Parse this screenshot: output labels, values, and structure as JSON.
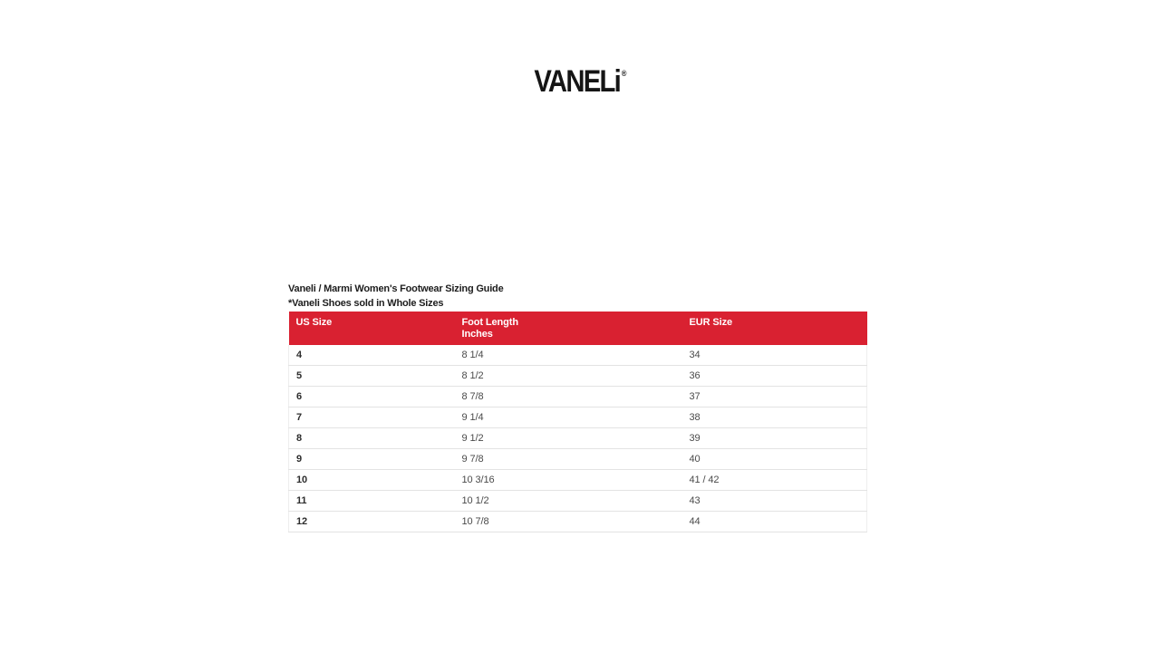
{
  "logo": {
    "text": "VANELi",
    "registered_mark": "®"
  },
  "sizing_guide": {
    "title": "Vaneli / Marmi Women's Footwear Sizing Guide",
    "note": "*Vaneli Shoes sold in Whole Sizes",
    "table": {
      "header_bg_color": "#d92131",
      "header_text_color": "#ffffff",
      "columns": [
        {
          "label": "US Size",
          "sublabel": ""
        },
        {
          "label": "Foot Length",
          "sublabel": "Inches"
        },
        {
          "label": "EUR Size",
          "sublabel": ""
        }
      ],
      "rows": [
        [
          "4",
          "8 1/4",
          "34"
        ],
        [
          "5",
          "8 1/2",
          "36"
        ],
        [
          "6",
          "8 7/8",
          "37"
        ],
        [
          "7",
          "9 1/4",
          "38"
        ],
        [
          "8",
          "9 1/2",
          "39"
        ],
        [
          "9",
          "9 7/8",
          "40"
        ],
        [
          "10",
          "10 3/16",
          "41 / 42"
        ],
        [
          "11",
          "10 1/2",
          "43"
        ],
        [
          "12",
          "10 7/8",
          "44"
        ]
      ]
    }
  }
}
